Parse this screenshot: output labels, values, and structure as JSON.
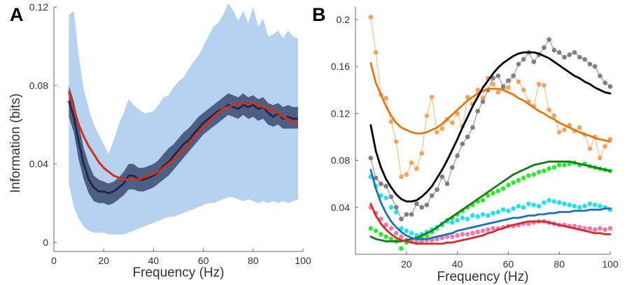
{
  "chart_data": [
    {
      "panel_label": "A",
      "type": "line",
      "title": "",
      "xlabel": "Frequency (Hz)",
      "ylabel": "Information (bits)",
      "xlim": [
        0,
        100
      ],
      "ylim": [
        0,
        0.12
      ],
      "x_ticks": [
        0,
        20,
        40,
        60,
        80,
        100
      ],
      "y_ticks": [
        0,
        0.04,
        0.08,
        0.12
      ],
      "x_tick_labels": [
        "0",
        "20",
        "40",
        "60",
        "80",
        "100"
      ],
      "y_tick_labels": [
        "0",
        "0.04",
        "0.08",
        "0.12"
      ],
      "grid": false,
      "x": [
        6,
        8,
        10,
        12,
        14,
        16,
        18,
        20,
        22,
        24,
        26,
        28,
        30,
        32,
        34,
        36,
        38,
        40,
        42,
        44,
        46,
        48,
        50,
        52,
        54,
        56,
        58,
        60,
        62,
        64,
        66,
        68,
        70,
        72,
        74,
        76,
        78,
        80,
        82,
        84,
        86,
        88,
        90,
        92,
        94,
        96,
        98
      ],
      "series": [
        {
          "role": "outer-band",
          "color": "#b7d1f0",
          "upper": [
            0.116,
            0.118,
            0.095,
            0.078,
            0.068,
            0.06,
            0.055,
            0.05,
            0.045,
            0.052,
            0.06,
            0.066,
            0.073,
            0.07,
            0.068,
            0.066,
            0.066,
            0.067,
            0.07,
            0.074,
            0.075,
            0.079,
            0.082,
            0.084,
            0.088,
            0.092,
            0.095,
            0.1,
            0.105,
            0.11,
            0.112,
            0.116,
            0.122,
            0.118,
            0.113,
            0.118,
            0.112,
            0.12,
            0.11,
            0.114,
            0.105,
            0.106,
            0.108,
            0.104,
            0.108,
            0.105,
            0.104
          ],
          "lower": [
            0.03,
            0.018,
            0.012,
            0.008,
            0.006,
            0.005,
            0.005,
            0.005,
            0.004,
            0.004,
            0.004,
            0.004,
            0.005,
            0.006,
            0.007,
            0.008,
            0.009,
            0.01,
            0.011,
            0.012,
            0.013,
            0.013,
            0.014,
            0.015,
            0.016,
            0.017,
            0.018,
            0.019,
            0.02,
            0.02,
            0.021,
            0.022,
            0.023,
            0.023,
            0.022,
            0.021,
            0.022,
            0.021,
            0.02,
            0.021,
            0.02,
            0.021,
            0.02,
            0.021,
            0.02,
            0.021,
            0.022
          ]
        },
        {
          "role": "inner-band",
          "color": "#4e5f85",
          "upper": [
            0.08,
            0.072,
            0.06,
            0.048,
            0.04,
            0.034,
            0.032,
            0.031,
            0.03,
            0.031,
            0.033,
            0.036,
            0.04,
            0.04,
            0.038,
            0.038,
            0.039,
            0.04,
            0.042,
            0.045,
            0.048,
            0.05,
            0.053,
            0.056,
            0.058,
            0.061,
            0.064,
            0.066,
            0.068,
            0.07,
            0.072,
            0.074,
            0.076,
            0.075,
            0.074,
            0.076,
            0.074,
            0.075,
            0.073,
            0.074,
            0.071,
            0.07,
            0.071,
            0.069,
            0.07,
            0.069,
            0.069
          ],
          "lower": [
            0.064,
            0.056,
            0.042,
            0.032,
            0.025,
            0.021,
            0.02,
            0.02,
            0.019,
            0.02,
            0.022,
            0.024,
            0.027,
            0.027,
            0.026,
            0.026,
            0.027,
            0.028,
            0.03,
            0.032,
            0.034,
            0.037,
            0.04,
            0.043,
            0.046,
            0.049,
            0.052,
            0.055,
            0.057,
            0.059,
            0.061,
            0.063,
            0.065,
            0.064,
            0.063,
            0.065,
            0.063,
            0.064,
            0.062,
            0.063,
            0.06,
            0.059,
            0.06,
            0.058,
            0.058,
            0.058,
            0.058
          ]
        },
        {
          "role": "mean-line",
          "color": "#1f2a4d",
          "values": [
            0.072,
            0.064,
            0.051,
            0.04,
            0.032,
            0.028,
            0.026,
            0.026,
            0.025,
            0.026,
            0.028,
            0.03,
            0.034,
            0.034,
            0.032,
            0.032,
            0.033,
            0.034,
            0.036,
            0.039,
            0.041,
            0.044,
            0.047,
            0.05,
            0.052,
            0.055,
            0.058,
            0.061,
            0.063,
            0.065,
            0.067,
            0.068,
            0.07,
            0.069,
            0.068,
            0.07,
            0.069,
            0.07,
            0.068,
            0.069,
            0.066,
            0.064,
            0.066,
            0.063,
            0.064,
            0.063,
            0.063
          ]
        },
        {
          "role": "fit-line",
          "color": "#d32f1a",
          "values": [
            0.077,
            0.068,
            0.06,
            0.054,
            0.049,
            0.045,
            0.041,
            0.038,
            0.036,
            0.034,
            0.033,
            0.032,
            0.032,
            0.032,
            0.032,
            0.033,
            0.034,
            0.035,
            0.036,
            0.038,
            0.04,
            0.042,
            0.045,
            0.047,
            0.05,
            0.053,
            0.056,
            0.059,
            0.061,
            0.064,
            0.066,
            0.068,
            0.069,
            0.07,
            0.071,
            0.071,
            0.071,
            0.071,
            0.07,
            0.069,
            0.068,
            0.067,
            0.066,
            0.064,
            0.063,
            0.061,
            0.06
          ]
        }
      ]
    },
    {
      "panel_label": "B",
      "type": "scatter",
      "title": "",
      "xlabel": "Frequency (Hz)",
      "ylabel": "",
      "xlim": [
        0,
        100
      ],
      "ylim": [
        0,
        0.2
      ],
      "x_ticks": [
        20,
        40,
        60,
        80,
        100
      ],
      "y_ticks": [
        0.04,
        0.08,
        0.12,
        0.16,
        0.2
      ],
      "x_tick_labels": [
        "20",
        "40",
        "60",
        "80",
        "100"
      ],
      "y_tick_labels": [
        "0.04",
        "0.08",
        "0.12",
        "0.16",
        "0.2"
      ],
      "grid": false,
      "x": [
        6,
        8,
        10,
        12,
        14,
        16,
        18,
        20,
        22,
        24,
        26,
        28,
        30,
        32,
        34,
        36,
        38,
        40,
        42,
        44,
        46,
        48,
        50,
        52,
        54,
        56,
        58,
        60,
        62,
        64,
        66,
        68,
        70,
        72,
        74,
        76,
        78,
        80,
        82,
        84,
        86,
        88,
        90,
        92,
        94,
        96,
        98,
        100
      ],
      "series": [
        {
          "color": "#f4a35f",
          "line_color": "#f7c08e",
          "fit_color": "#e07a10",
          "points": [
            0.202,
            0.172,
            0.136,
            0.133,
            0.113,
            0.096,
            0.066,
            0.068,
            0.078,
            0.073,
            0.086,
            0.118,
            0.134,
            0.104,
            0.107,
            0.115,
            0.112,
            0.12,
            0.109,
            0.134,
            0.128,
            0.14,
            0.133,
            0.15,
            0.145,
            0.138,
            0.141,
            0.142,
            0.152,
            0.147,
            0.14,
            0.13,
            0.126,
            0.145,
            0.144,
            0.123,
            0.118,
            0.104,
            0.106,
            0.11,
            0.105,
            0.108,
            0.102,
            0.09,
            0.1,
            0.082,
            0.092,
            0.098
          ],
          "fit": [
            0.163,
            0.146,
            0.136,
            0.126,
            0.118,
            0.112,
            0.108,
            0.106,
            0.104,
            0.103,
            0.103,
            0.104,
            0.106,
            0.108,
            0.111,
            0.115,
            0.119,
            0.123,
            0.127,
            0.131,
            0.134,
            0.137,
            0.139,
            0.141,
            0.141,
            0.141,
            0.14,
            0.138,
            0.136,
            0.133,
            0.131,
            0.128,
            0.125,
            0.122,
            0.12,
            0.117,
            0.115,
            0.112,
            0.11,
            0.108,
            0.106,
            0.104,
            0.102,
            0.101,
            0.099,
            0.098,
            0.097,
            0.096
          ]
        },
        {
          "color": "#7f7f7f",
          "line_color": "#9a9a9a",
          "fit_color": "#000000",
          "points": [
            0.082,
            0.065,
            0.06,
            0.058,
            0.049,
            0.04,
            0.03,
            0.034,
            0.034,
            0.043,
            0.04,
            0.042,
            0.05,
            0.055,
            0.066,
            0.06,
            0.074,
            0.084,
            0.094,
            0.1,
            0.108,
            0.122,
            0.13,
            0.14,
            0.15,
            0.152,
            0.143,
            0.148,
            0.152,
            0.162,
            0.166,
            0.172,
            0.164,
            0.17,
            0.176,
            0.183,
            0.174,
            0.172,
            0.168,
            0.17,
            0.172,
            0.168,
            0.166,
            0.162,
            0.16,
            0.152,
            0.146,
            0.143
          ],
          "fit": [
            0.11,
            0.088,
            0.074,
            0.064,
            0.057,
            0.051,
            0.047,
            0.045,
            0.045,
            0.046,
            0.049,
            0.053,
            0.058,
            0.065,
            0.072,
            0.08,
            0.089,
            0.098,
            0.108,
            0.117,
            0.126,
            0.134,
            0.142,
            0.148,
            0.154,
            0.159,
            0.163,
            0.166,
            0.169,
            0.171,
            0.172,
            0.172,
            0.172,
            0.171,
            0.169,
            0.167,
            0.164,
            0.161,
            0.158,
            0.155,
            0.152,
            0.15,
            0.147,
            0.145,
            0.142,
            0.14,
            0.138,
            0.137
          ]
        },
        {
          "color": "#2ee82e",
          "fit_color": "#1a7a1a",
          "points": [
            0.022,
            0.02,
            0.017,
            0.015,
            0.013,
            0.011,
            0.005,
            0.01,
            0.011,
            0.012,
            0.014,
            0.016,
            0.019,
            0.022,
            0.025,
            0.029,
            0.031,
            0.034,
            0.037,
            0.04,
            0.042,
            0.045,
            0.046,
            0.05,
            0.052,
            0.054,
            0.056,
            0.059,
            0.061,
            0.063,
            0.065,
            0.067,
            0.068,
            0.07,
            0.071,
            0.073,
            0.074,
            0.076,
            0.076,
            0.077,
            0.078,
            0.076,
            0.077,
            0.075,
            0.074,
            0.073,
            0.072,
            0.071
          ],
          "fit": [
            0.015,
            0.013,
            0.012,
            0.011,
            0.011,
            0.011,
            0.011,
            0.012,
            0.013,
            0.014,
            0.016,
            0.018,
            0.02,
            0.023,
            0.026,
            0.029,
            0.032,
            0.035,
            0.038,
            0.041,
            0.044,
            0.047,
            0.05,
            0.053,
            0.056,
            0.059,
            0.062,
            0.065,
            0.068,
            0.07,
            0.072,
            0.074,
            0.076,
            0.077,
            0.078,
            0.079,
            0.079,
            0.079,
            0.079,
            0.079,
            0.078,
            0.077,
            0.076,
            0.075,
            0.074,
            0.073,
            0.072,
            0.071
          ]
        },
        {
          "color": "#22e0f0",
          "fit_color": "#1a73b8",
          "points": [
            0.066,
            0.058,
            0.05,
            0.048,
            0.04,
            0.036,
            0.022,
            0.02,
            0.018,
            0.016,
            0.017,
            0.019,
            0.021,
            0.023,
            0.026,
            0.028,
            0.027,
            0.029,
            0.031,
            0.03,
            0.033,
            0.032,
            0.034,
            0.033,
            0.035,
            0.036,
            0.038,
            0.037,
            0.039,
            0.041,
            0.04,
            0.043,
            0.042,
            0.041,
            0.044,
            0.046,
            0.045,
            0.044,
            0.043,
            0.042,
            0.041,
            0.04,
            0.041,
            0.043,
            0.042,
            0.041,
            0.04,
            0.038
          ],
          "fit": [
            0.072,
            0.056,
            0.044,
            0.035,
            0.028,
            0.023,
            0.019,
            0.016,
            0.014,
            0.013,
            0.013,
            0.013,
            0.014,
            0.015,
            0.016,
            0.017,
            0.018,
            0.02,
            0.021,
            0.022,
            0.023,
            0.024,
            0.025,
            0.026,
            0.027,
            0.028,
            0.029,
            0.03,
            0.031,
            0.031,
            0.032,
            0.033,
            0.033,
            0.034,
            0.034,
            0.035,
            0.035,
            0.036,
            0.036,
            0.036,
            0.037,
            0.037,
            0.037,
            0.038,
            0.038,
            0.038,
            0.039,
            0.039
          ],
          "draw_last": false
        },
        {
          "color": "#f078b0",
          "fit_color": "#d42a2a",
          "points": [
            0.04,
            0.035,
            0.03,
            0.025,
            0.022,
            0.018,
            0.015,
            0.012,
            0.011,
            0.01,
            0.011,
            0.012,
            0.012,
            0.013,
            0.014,
            0.015,
            0.015,
            0.016,
            0.017,
            0.017,
            0.018,
            0.019,
            0.02,
            0.021,
            0.022,
            0.022,
            0.023,
            0.024,
            0.024,
            0.025,
            0.026,
            0.026,
            0.027,
            0.028,
            0.028,
            0.027,
            0.026,
            0.025,
            0.025,
            0.024,
            0.024,
            0.023,
            0.022,
            0.022,
            0.021,
            0.022,
            0.021,
            0.022
          ],
          "fit": [
            0.043,
            0.033,
            0.026,
            0.021,
            0.017,
            0.014,
            0.012,
            0.011,
            0.01,
            0.009,
            0.009,
            0.009,
            0.009,
            0.009,
            0.009,
            0.01,
            0.01,
            0.011,
            0.012,
            0.013,
            0.014,
            0.015,
            0.016,
            0.018,
            0.019,
            0.021,
            0.022,
            0.024,
            0.025,
            0.026,
            0.027,
            0.028,
            0.028,
            0.028,
            0.028,
            0.027,
            0.026,
            0.025,
            0.024,
            0.023,
            0.022,
            0.021,
            0.02,
            0.019,
            0.018,
            0.018,
            0.017,
            0.017
          ]
        }
      ]
    }
  ]
}
